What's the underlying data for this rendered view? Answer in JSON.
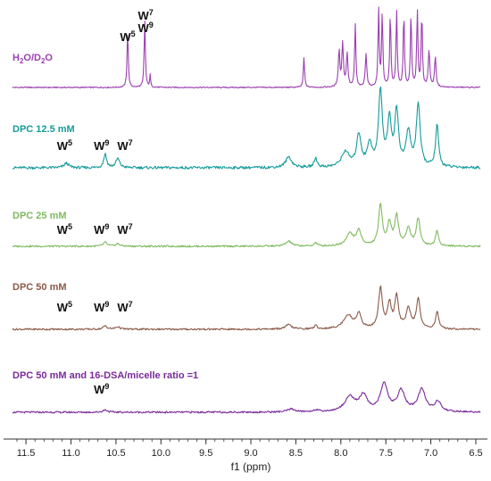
{
  "chart_data": {
    "type": "line",
    "title": "",
    "xlabel": "f1 (ppm)",
    "ylabel": "",
    "xlim": [
      11.65,
      6.45
    ],
    "x_reversed": true,
    "grid": false,
    "x_ticks": [
      "11.5",
      "11.0",
      "10.5",
      "10.0",
      "9.5",
      "9.0",
      "8.5",
      "8.0",
      "7.5",
      "7.0",
      "6.5"
    ],
    "series": [
      {
        "name": "H2O/D2O",
        "name_base": "H",
        "name_sub1": "2",
        "name_mid": "O/D",
        "name_sub2": "2",
        "name_end": "O",
        "color": "#9b3fb0",
        "peaks": [
          {
            "ppm": 10.37,
            "h": 0.85,
            "w": 0.008
          },
          {
            "ppm": 10.18,
            "h": 1.0,
            "w": 0.008
          },
          {
            "ppm": 10.12,
            "h": 0.18,
            "w": 0.006
          },
          {
            "ppm": 8.41,
            "h": 0.45,
            "w": 0.008
          },
          {
            "ppm": 8.02,
            "h": 0.55,
            "w": 0.01
          },
          {
            "ppm": 7.98,
            "h": 0.65,
            "w": 0.01
          },
          {
            "ppm": 7.93,
            "h": 0.5,
            "w": 0.01
          },
          {
            "ppm": 7.84,
            "h": 0.95,
            "w": 0.008
          },
          {
            "ppm": 7.72,
            "h": 0.5,
            "w": 0.01
          },
          {
            "ppm": 7.58,
            "h": 1.15,
            "w": 0.008
          },
          {
            "ppm": 7.54,
            "h": 1.1,
            "w": 0.008
          },
          {
            "ppm": 7.45,
            "h": 1.1,
            "w": 0.008
          },
          {
            "ppm": 7.38,
            "h": 1.15,
            "w": 0.008
          },
          {
            "ppm": 7.3,
            "h": 1.1,
            "w": 0.008
          },
          {
            "ppm": 7.22,
            "h": 1.1,
            "w": 0.008
          },
          {
            "ppm": 7.15,
            "h": 1.15,
            "w": 0.008
          },
          {
            "ppm": 7.1,
            "h": 1.1,
            "w": 0.008
          },
          {
            "ppm": 7.02,
            "h": 0.55,
            "w": 0.01
          },
          {
            "ppm": 6.95,
            "h": 0.45,
            "w": 0.01
          }
        ]
      },
      {
        "name": "DPC 12.5 mM",
        "color": "#169b9b",
        "peaks": [
          {
            "ppm": 11.05,
            "h": 0.06,
            "w": 0.03
          },
          {
            "ppm": 10.62,
            "h": 0.18,
            "w": 0.02
          },
          {
            "ppm": 10.48,
            "h": 0.12,
            "w": 0.025
          },
          {
            "ppm": 8.58,
            "h": 0.14,
            "w": 0.04
          },
          {
            "ppm": 8.28,
            "h": 0.12,
            "w": 0.02
          },
          {
            "ppm": 7.95,
            "h": 0.2,
            "w": 0.05
          },
          {
            "ppm": 7.8,
            "h": 0.42,
            "w": 0.03
          },
          {
            "ppm": 7.68,
            "h": 0.3,
            "w": 0.03
          },
          {
            "ppm": 7.56,
            "h": 1.0,
            "w": 0.025
          },
          {
            "ppm": 7.46,
            "h": 0.6,
            "w": 0.025
          },
          {
            "ppm": 7.38,
            "h": 0.72,
            "w": 0.025
          },
          {
            "ppm": 7.25,
            "h": 0.45,
            "w": 0.03
          },
          {
            "ppm": 7.14,
            "h": 0.82,
            "w": 0.025
          },
          {
            "ppm": 6.93,
            "h": 0.55,
            "w": 0.02
          }
        ]
      },
      {
        "name": "DPC 25 mM",
        "color": "#7fba5e",
        "peaks": [
          {
            "ppm": 10.62,
            "h": 0.08,
            "w": 0.025
          },
          {
            "ppm": 10.48,
            "h": 0.05,
            "w": 0.03
          },
          {
            "ppm": 8.58,
            "h": 0.1,
            "w": 0.04
          },
          {
            "ppm": 8.28,
            "h": 0.07,
            "w": 0.02
          },
          {
            "ppm": 7.9,
            "h": 0.25,
            "w": 0.05
          },
          {
            "ppm": 7.8,
            "h": 0.3,
            "w": 0.03
          },
          {
            "ppm": 7.56,
            "h": 0.82,
            "w": 0.025
          },
          {
            "ppm": 7.46,
            "h": 0.45,
            "w": 0.025
          },
          {
            "ppm": 7.38,
            "h": 0.6,
            "w": 0.025
          },
          {
            "ppm": 7.25,
            "h": 0.35,
            "w": 0.03
          },
          {
            "ppm": 7.14,
            "h": 0.55,
            "w": 0.025
          },
          {
            "ppm": 6.93,
            "h": 0.3,
            "w": 0.02
          }
        ]
      },
      {
        "name": "DPC 50 mM",
        "color": "#8a5a48",
        "peaks": [
          {
            "ppm": 10.62,
            "h": 0.07,
            "w": 0.025
          },
          {
            "ppm": 10.48,
            "h": 0.05,
            "w": 0.03
          },
          {
            "ppm": 8.58,
            "h": 0.09,
            "w": 0.04
          },
          {
            "ppm": 8.28,
            "h": 0.07,
            "w": 0.02
          },
          {
            "ppm": 7.92,
            "h": 0.28,
            "w": 0.06
          },
          {
            "ppm": 7.8,
            "h": 0.3,
            "w": 0.03
          },
          {
            "ppm": 7.56,
            "h": 0.82,
            "w": 0.025
          },
          {
            "ppm": 7.46,
            "h": 0.5,
            "w": 0.025
          },
          {
            "ppm": 7.38,
            "h": 0.65,
            "w": 0.025
          },
          {
            "ppm": 7.25,
            "h": 0.4,
            "w": 0.03
          },
          {
            "ppm": 7.14,
            "h": 0.6,
            "w": 0.025
          },
          {
            "ppm": 6.93,
            "h": 0.35,
            "w": 0.02
          }
        ]
      },
      {
        "name": "DPC 50 mM and 16-DSA/micelle ratio =1",
        "color": "#7a2a9a",
        "peaks": [
          {
            "ppm": 10.62,
            "h": 0.05,
            "w": 0.03
          },
          {
            "ppm": 8.55,
            "h": 0.06,
            "w": 0.05
          },
          {
            "ppm": 8.28,
            "h": 0.04,
            "w": 0.03
          },
          {
            "ppm": 7.9,
            "h": 0.3,
            "w": 0.07
          },
          {
            "ppm": 7.75,
            "h": 0.32,
            "w": 0.05
          },
          {
            "ppm": 7.52,
            "h": 0.55,
            "w": 0.05
          },
          {
            "ppm": 7.33,
            "h": 0.42,
            "w": 0.05
          },
          {
            "ppm": 7.1,
            "h": 0.45,
            "w": 0.05
          },
          {
            "ppm": 6.92,
            "h": 0.2,
            "w": 0.04
          }
        ]
      }
    ],
    "annotations": [
      {
        "spectrum": 0,
        "text": "W",
        "sup": "5",
        "ppm": 10.37
      },
      {
        "spectrum": 0,
        "text": "W",
        "sup": "7",
        "ppm": 10.17,
        "line": 1
      },
      {
        "spectrum": 0,
        "text": "W",
        "sup": "9",
        "ppm": 10.17,
        "line": 2
      },
      {
        "spectrum": 1,
        "text": "W",
        "sup": "5",
        "ppm": 11.07
      },
      {
        "spectrum": 1,
        "text": "W",
        "sup": "9",
        "ppm": 10.66
      },
      {
        "spectrum": 1,
        "text": "W",
        "sup": "7",
        "ppm": 10.4
      },
      {
        "spectrum": 2,
        "text": "W",
        "sup": "5",
        "ppm": 11.07
      },
      {
        "spectrum": 2,
        "text": "W",
        "sup": "9",
        "ppm": 10.66
      },
      {
        "spectrum": 2,
        "text": "W",
        "sup": "7",
        "ppm": 10.4
      },
      {
        "spectrum": 3,
        "text": "W",
        "sup": "5",
        "ppm": 11.07
      },
      {
        "spectrum": 3,
        "text": "W",
        "sup": "9",
        "ppm": 10.66
      },
      {
        "spectrum": 3,
        "text": "W",
        "sup": "7",
        "ppm": 10.4
      },
      {
        "spectrum": 4,
        "text": "W",
        "sup": "9",
        "ppm": 10.66
      }
    ]
  }
}
